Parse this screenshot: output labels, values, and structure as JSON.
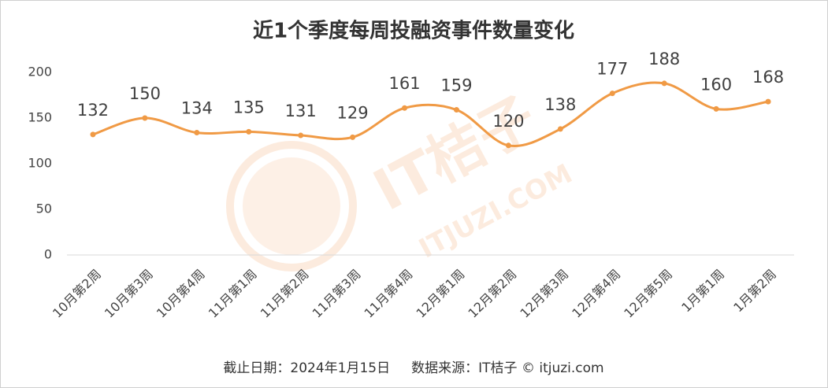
{
  "chart_data": {
    "type": "line",
    "title": "近1个季度每周投融资事件数量变化",
    "categories": [
      "10月第2周",
      "10月第3周",
      "10月第4周",
      "11月第1周",
      "11月第2周",
      "11月第3周",
      "11月第4周",
      "12月第1周",
      "12月第2周",
      "12月第3周",
      "12月第4周",
      "12月第5周",
      "1月第1周",
      "1月第2周"
    ],
    "values": [
      132,
      150,
      134,
      135,
      131,
      129,
      161,
      159,
      120,
      138,
      177,
      188,
      160,
      168
    ],
    "color": "#f09a45",
    "smooth": true,
    "ylim": [
      0,
      200
    ],
    "yticks": [
      0,
      50,
      100,
      150,
      200
    ],
    "grid": false,
    "footnote": "截止日期：2024年1月15日     数据来源：IT桔子 © itjuzi.com",
    "watermark": {
      "brand": "IT桔子",
      "url": "ITJUZI.COM"
    }
  }
}
